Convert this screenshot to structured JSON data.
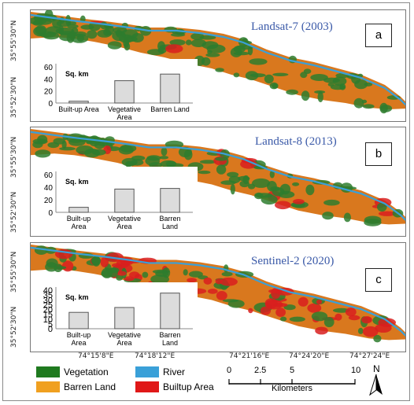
{
  "panels": [
    {
      "label": "a",
      "sensor": "Landsat-7 (2003)",
      "lat_top": "35°55'30\"N",
      "lat_bottom": "35°52'30\"N",
      "chart_data": {
        "type": "bar",
        "ylabel": "Sq. km",
        "categories": [
          [
            "Built-up Area"
          ],
          [
            "Vegetative",
            "Area"
          ],
          [
            "Barren Land"
          ]
        ],
        "values": [
          3,
          37,
          48
        ],
        "yticks": [
          0,
          20,
          40,
          60
        ],
        "ylim": [
          0,
          60
        ]
      }
    },
    {
      "label": "b",
      "sensor": "Landsat-8 (2013)",
      "lat_top": "35°55'30\"N",
      "lat_bottom": "35°52'30\"N",
      "chart_data": {
        "type": "bar",
        "ylabel": "Sq. km",
        "categories": [
          [
            "Built-up",
            "Area"
          ],
          [
            "Vegetative",
            "Area"
          ],
          [
            "Barren",
            "Land"
          ]
        ],
        "values": [
          8,
          37,
          38
        ],
        "yticks": [
          0,
          20,
          40,
          60
        ],
        "ylim": [
          0,
          60
        ]
      }
    },
    {
      "label": "c",
      "sensor": "Sentinel-2 (2020)",
      "lat_top": "35°55'30\"N",
      "lat_bottom": "35°52'30\"N",
      "chart_data": {
        "type": "bar",
        "ylabel": "Sq. km",
        "categories": [
          [
            "Built-up",
            "Area"
          ],
          [
            "Vegetative",
            "Area"
          ],
          [
            "Barren",
            "Land"
          ]
        ],
        "values": [
          17,
          22,
          37
        ],
        "yticks": [
          0,
          5,
          10,
          15,
          20,
          25,
          30,
          35,
          40
        ],
        "ylim": [
          0,
          40
        ]
      }
    }
  ],
  "longitudes": [
    "74°15'8\"E",
    "74°18'12\"E",
    "74°21'16\"E",
    "74°24'20\"E",
    "74°27'24\"E"
  ],
  "legend": [
    {
      "label": "Vegetation",
      "color": "#1f7a1f"
    },
    {
      "label": "River",
      "color": "#3aa0d8"
    },
    {
      "label": "Barren Land",
      "color": "#f0a020"
    },
    {
      "label": "Builtup Area",
      "color": "#e01818"
    }
  ],
  "scale": {
    "ticks": [
      "0",
      "2.5",
      "5",
      "10"
    ],
    "unit": "Kilometers"
  },
  "north": "N",
  "colors": {
    "barren": "#d9781e",
    "vegetation": "#2e7d2e",
    "builtup": "#d81e1e",
    "river": "#3aa0d8",
    "bar_fill": "#dcdcdc",
    "sensor_text": "#3b5aa8"
  }
}
